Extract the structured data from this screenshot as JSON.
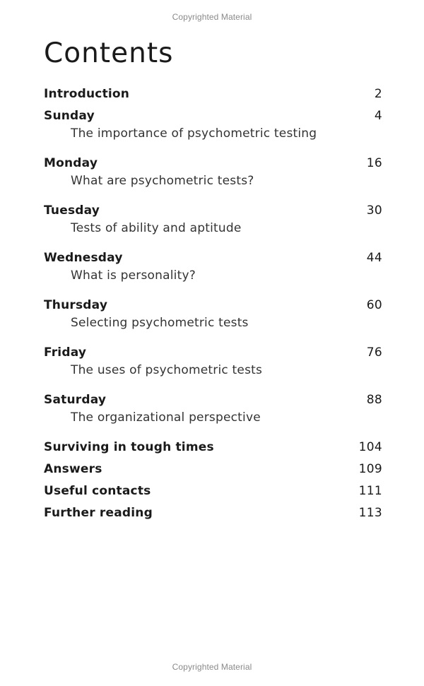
{
  "watermark": {
    "top": "Copyrighted Material",
    "bottom": "Copyrighted Material"
  },
  "title": "Contents",
  "toc": [
    {
      "title": "Introduction",
      "page": "2",
      "sub": ""
    },
    {
      "title": "Sunday",
      "page": "4",
      "sub": "The importance of psychometric testing"
    },
    {
      "title": "Monday",
      "page": "16",
      "sub": "What are psychometric tests?"
    },
    {
      "title": "Tuesday",
      "page": "30",
      "sub": "Tests of ability and aptitude"
    },
    {
      "title": "Wednesday",
      "page": "44",
      "sub": "What is personality?"
    },
    {
      "title": "Thursday",
      "page": "60",
      "sub": "Selecting psychometric tests"
    },
    {
      "title": "Friday",
      "page": "76",
      "sub": "The uses of psychometric tests"
    },
    {
      "title": "Saturday",
      "page": "88",
      "sub": "The organizational perspective"
    },
    {
      "title": "Surviving in tough times",
      "page": "104",
      "sub": ""
    },
    {
      "title": "Answers",
      "page": "109",
      "sub": ""
    },
    {
      "title": "Useful contacts",
      "page": "111",
      "sub": ""
    },
    {
      "title": "Further reading",
      "page": "113",
      "sub": ""
    }
  ]
}
